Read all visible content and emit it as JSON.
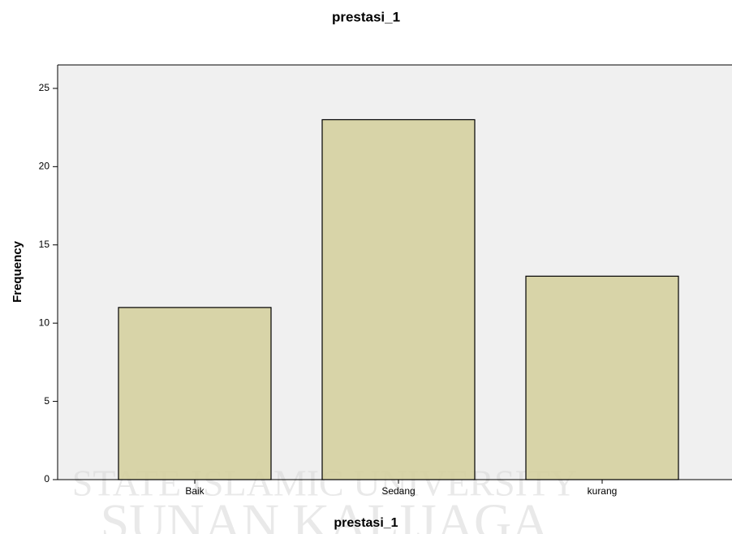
{
  "chart_data": {
    "type": "bar",
    "title": "prestasi_1",
    "x_label": "prestasi_1",
    "y_label": "Frequency",
    "categories": [
      "Baik",
      "Sedang",
      "kurang"
    ],
    "values": [
      11,
      23,
      13
    ],
    "color": "#d4cf9b",
    "ylim": [
      0,
      26.5
    ],
    "yticks": [
      0,
      5,
      10,
      15,
      20,
      25
    ],
    "grid": false
  },
  "watermark": {
    "line1": "STATE ISLAMIC UNIVERSITY",
    "line2": "SUNAN KALIJAGA"
  }
}
